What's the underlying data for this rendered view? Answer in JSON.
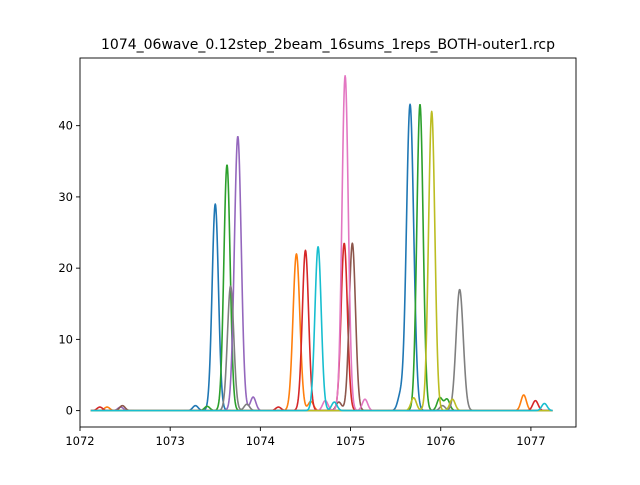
{
  "chart_data": {
    "type": "line",
    "title": "1074_06wave_0.12step_2beam_16sums_1reps_BOTH-outer1.rcp",
    "xlabel": "",
    "ylabel": "",
    "xlim": [
      1072.0,
      1077.5
    ],
    "ylim": [
      -2.3,
      49.5
    ],
    "x_ticks": [
      1072,
      1073,
      1074,
      1075,
      1076,
      1077
    ],
    "y_ticks": [
      0,
      10,
      20,
      30,
      40
    ],
    "grid": false,
    "legend": "none",
    "series": [
      {
        "color": "#1f77b4",
        "peaks": [
          {
            "center": 1073.5,
            "height": 29.0,
            "sigma": 0.035
          },
          {
            "center": 1075.66,
            "height": 43.0,
            "sigma": 0.04
          }
        ],
        "ripple": [
          {
            "center": 1073.28,
            "height": 0.7
          },
          {
            "center": 1075.55,
            "height": 1.9
          }
        ]
      },
      {
        "color": "#ff7f0e",
        "peaks": [
          {
            "center": 1074.4,
            "height": 22.0,
            "sigma": 0.038
          }
        ],
        "ripple": [
          {
            "center": 1072.3,
            "height": 0.5
          },
          {
            "center": 1076.92,
            "height": 2.2
          },
          {
            "center": 1074.56,
            "height": 1.3
          }
        ]
      },
      {
        "color": "#2ca02c",
        "peaks": [
          {
            "center": 1073.63,
            "height": 34.5,
            "sigma": 0.035
          },
          {
            "center": 1075.77,
            "height": 43.0,
            "sigma": 0.035
          }
        ],
        "ripple": [
          {
            "center": 1073.41,
            "height": 0.6
          },
          {
            "center": 1075.99,
            "height": 1.8
          },
          {
            "center": 1076.07,
            "height": 1.6
          }
        ]
      },
      {
        "color": "#d62728",
        "peaks": [
          {
            "center": 1074.5,
            "height": 22.5,
            "sigma": 0.035
          },
          {
            "center": 1074.93,
            "height": 23.5,
            "sigma": 0.035
          }
        ],
        "ripple": [
          {
            "center": 1072.22,
            "height": 0.5
          },
          {
            "center": 1077.05,
            "height": 1.4
          },
          {
            "center": 1074.2,
            "height": 0.5
          }
        ]
      },
      {
        "color": "#9467bd",
        "peaks": [
          {
            "center": 1073.75,
            "height": 38.5,
            "sigma": 0.038
          }
        ],
        "ripple": [
          {
            "center": 1073.92,
            "height": 1.9
          },
          {
            "center": 1072.45,
            "height": 0.5
          }
        ]
      },
      {
        "color": "#8c564b",
        "peaks": [
          {
            "center": 1075.02,
            "height": 23.5,
            "sigma": 0.035
          }
        ],
        "ripple": [
          {
            "center": 1072.47,
            "height": 0.7
          },
          {
            "center": 1074.87,
            "height": 1.2
          }
        ]
      },
      {
        "color": "#e377c2",
        "peaks": [
          {
            "center": 1074.94,
            "height": 47.0,
            "sigma": 0.035
          }
        ],
        "ripple": [
          {
            "center": 1075.16,
            "height": 1.6
          },
          {
            "center": 1074.72,
            "height": 1.4
          }
        ]
      },
      {
        "color": "#7f7f7f",
        "peaks": [
          {
            "center": 1073.67,
            "height": 17.5,
            "sigma": 0.035
          },
          {
            "center": 1076.21,
            "height": 17.0,
            "sigma": 0.04
          }
        ],
        "ripple": [
          {
            "center": 1073.85,
            "height": 0.9
          },
          {
            "center": 1076.02,
            "height": 0.7
          }
        ]
      },
      {
        "color": "#bcbd22",
        "peaks": [
          {
            "center": 1075.9,
            "height": 42.0,
            "sigma": 0.035
          }
        ],
        "ripple": [
          {
            "center": 1075.7,
            "height": 1.8
          },
          {
            "center": 1076.13,
            "height": 1.6
          }
        ]
      },
      {
        "color": "#17becf",
        "peaks": [
          {
            "center": 1074.64,
            "height": 23.0,
            "sigma": 0.035
          }
        ],
        "ripple": [
          {
            "center": 1074.82,
            "height": 1.2
          },
          {
            "center": 1077.15,
            "height": 1.0
          }
        ]
      }
    ]
  }
}
